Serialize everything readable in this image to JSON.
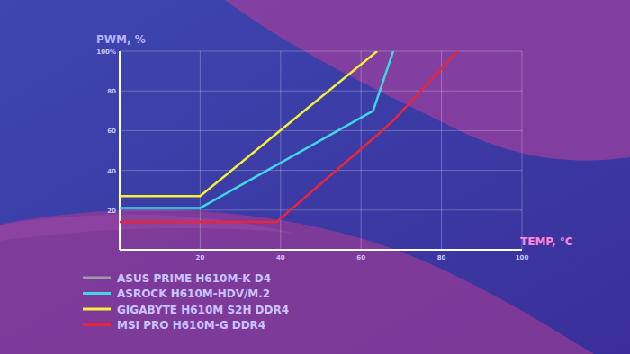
{
  "chart_data": {
    "type": "line",
    "x_label": "TEMP, °C",
    "y_label": "PWM, %",
    "xlim": [
      0,
      100
    ],
    "xticks": [
      20,
      40,
      60,
      80,
      100
    ],
    "ylim": [
      0,
      100
    ],
    "yticks": [
      20,
      40,
      60,
      80,
      {
        "value": 100,
        "label": "100%"
      }
    ],
    "grid": true,
    "legend": "bottom-left",
    "series": [
      {
        "name": "ASUS PRIME H610M-K D4",
        "color": "#9a9aa6",
        "x": [],
        "values": []
      },
      {
        "name": "ASROCK H610M-HDV/M.2",
        "color": "#3fd6e6",
        "x": [
          0,
          20,
          63,
          68
        ],
        "values": [
          21,
          21,
          70,
          100
        ]
      },
      {
        "name": "GIGABYTE H610M S2H DDR4",
        "color": "#f2f03a",
        "x": [
          0,
          20,
          64
        ],
        "values": [
          27,
          27,
          100
        ]
      },
      {
        "name": "MSI PRO H610M-G DDR4",
        "color": "#e8253a",
        "x": [
          0,
          39,
          63,
          68,
          84
        ],
        "values": [
          14,
          14,
          56,
          65,
          100
        ]
      }
    ]
  }
}
